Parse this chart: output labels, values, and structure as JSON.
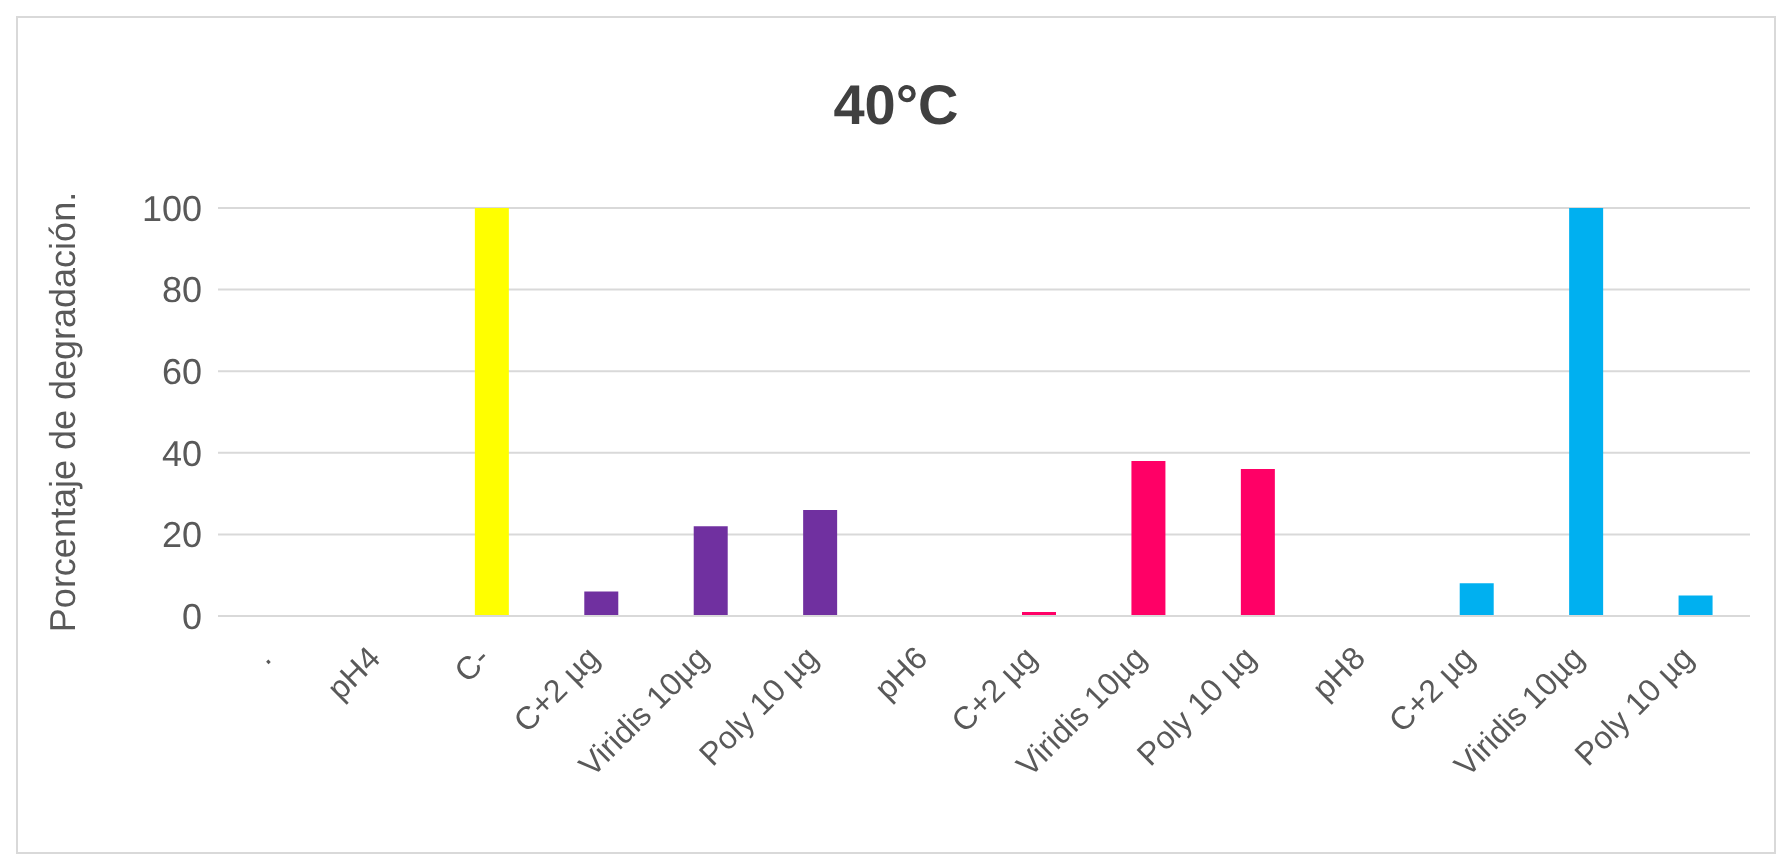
{
  "chart_data": {
    "type": "bar",
    "title": "40°C",
    "ylabel": "Porcentaje de degradación.",
    "categories": [
      ".",
      "pH4",
      "C-",
      "C+2 µg",
      "Viridis 10µg",
      "Poly 10 µg",
      "pH6",
      "C+2 µg",
      "Viridis 10µg",
      "Poly 10 µg",
      "pH8",
      "C+2 µg",
      "Viridis 10µg",
      "Poly 10 µg"
    ],
    "values": [
      null,
      null,
      100,
      6,
      22,
      26,
      null,
      1,
      38,
      36,
      null,
      8,
      100,
      5
    ],
    "colors": [
      "#7030a0",
      "#7030a0",
      "#ffff00",
      "#7030a0",
      "#7030a0",
      "#7030a0",
      "#ff0066",
      "#ff0066",
      "#ff0066",
      "#ff0066",
      "#00b0f0",
      "#00b0f0",
      "#00b0f0",
      "#00b0f0"
    ],
    "ylim": [
      0,
      100
    ],
    "yticks": [
      0,
      20,
      40,
      60,
      80,
      100
    ],
    "grid": "y"
  }
}
